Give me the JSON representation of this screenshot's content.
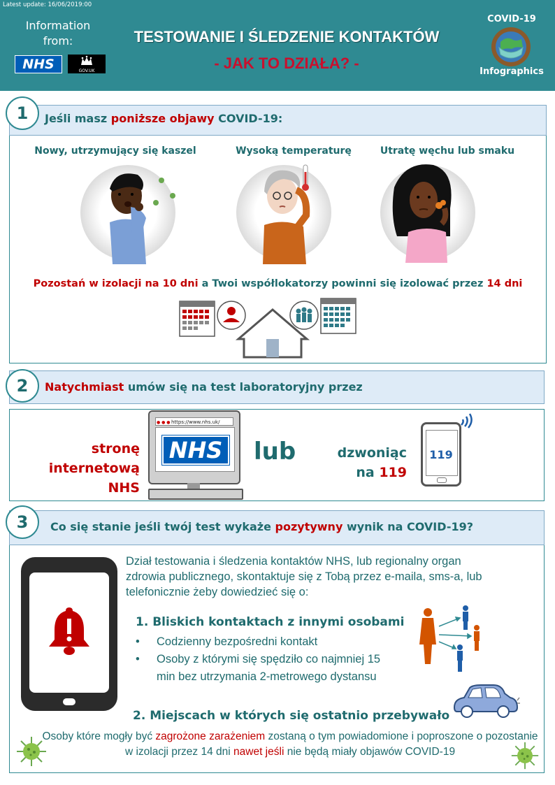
{
  "header": {
    "latest_update": "Latest update: 16/06/2019:00",
    "information_from": "Information from:",
    "nhs_logo": "NHS",
    "gov_logo": "GOV.UK",
    "title": "TESTOWANIE I ŚLEDZENIE KONTAKTÓW",
    "subtitle": "- JAK TO DZIAŁA? -",
    "covid_label": "COVID-19",
    "infographics_label": "Infographics",
    "globe_icon": "globe-mask-icon"
  },
  "section1": {
    "number": "1",
    "heading_part1": "Jeśli masz ",
    "heading_highlight": "poniższe objawy",
    "heading_part2": " COVID-19:",
    "symptoms": [
      {
        "label": "Nowy, utrzymujący się kaszel",
        "icon": "coughing-person-icon"
      },
      {
        "label": "Wysoką temperaturę",
        "icon": "fever-person-icon"
      },
      {
        "label": "Utratę węchu lub smaku",
        "icon": "smelling-person-icon"
      }
    ],
    "isolation": {
      "part1": "Pozostań w izolacji na ",
      "days_self": "10 dni",
      "part2": " a Twoi współlokatorzy powinni się izolować przez ",
      "days_household": "14 dni"
    }
  },
  "section2": {
    "number": "2",
    "heading_highlight": "Natychmiast",
    "heading_rest": " umów się na test laboratoryjny przez",
    "website_label_line1": "stronę",
    "website_label_line2": "internetową",
    "website_label_line3": "NHS",
    "url": "https://www.nhs.uk/",
    "screen_logo": "NHS",
    "or_label": "lub",
    "phone_label_line1": "dzwoniąc",
    "phone_label_na": "na ",
    "phone_number": "119",
    "phone_screen_number": "119"
  },
  "section3": {
    "number": "3",
    "heading_part1": "Co się stanie jeśli twój test wykaże ",
    "heading_highlight": "pozytywny",
    "heading_part2": " wynik na COVID-19?",
    "body": "Dział testowania i śledzenia kontaktów NHS, lub regionalny organ zdrowia publicznego, skontaktuje się z Tobą przez e-maila, sms-a, lub telefonicznie żeby dowiedzieć się o:",
    "item1_title": "1. Bliskich kontaktach z innymi osobami",
    "bullets": [
      "Codzienny bezpośredni kontakt",
      "Osoby z którymi się spędziło co najmniej 15 min bez utrzymania 2-metrowego dystansu"
    ],
    "item2_title": "2. Miejscach w których się ostatnio przebywało",
    "footer_part1": "Osoby które mogły być ",
    "footer_red1": "zagrożone zarażeniem",
    "footer_part2": " zostaną o tym powiadomione i poproszone o pozostanie w izolacji przez 14 dni ",
    "footer_red2": "nawet jeśli",
    "footer_part3": " nie będą miały objawów COVID-19"
  },
  "colors": {
    "header_teal": "#2f8a92",
    "text_teal": "#1f6b6e",
    "accent_red": "#c00000",
    "bar_blue": "#deebf7",
    "nhs_blue": "#005eb8"
  }
}
